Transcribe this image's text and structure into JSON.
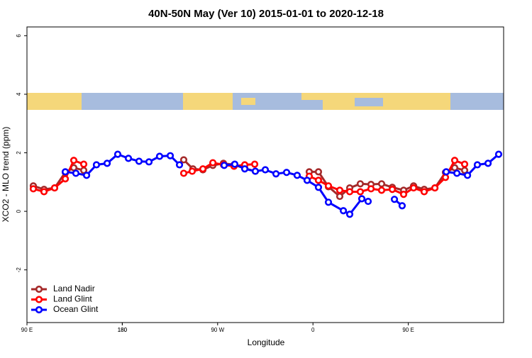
{
  "chart_data": {
    "type": "line",
    "title": "40N-50N May (Ver 10)   2015-01-01 to 2020-12-18",
    "x_label": "Longitude",
    "y_label": "XCO2 - MLO trend (ppm)",
    "xlim": [
      90,
      540
    ],
    "ylim": [
      -3.8,
      6.3
    ],
    "xticks": [
      {
        "value": 90,
        "label": "90 E"
      },
      180,
      {
        "value": 270,
        "label": "90 W"
      },
      {
        "value": 360,
        "label": "0"
      },
      {
        "value": 450,
        "label": "90 E"
      },
      180
    ],
    "yticks": [
      -2,
      0,
      2,
      4,
      6
    ],
    "legend": "bottom-left",
    "series": [
      {
        "name": "Land Nadir",
        "color": "#a52a2a",
        "x": [
          96.0,
          106.1,
          116.1,
          126.2,
          134.2,
          143.6,
          190,
          238.0,
          246.7,
          256.1,
          265.5,
          275.5,
          285.5,
          295.6,
          305.6,
          330,
          356.5,
          365.2,
          374.6,
          385.3,
          394.7,
          404.7,
          414.8,
          424.8,
          434.9,
          445.6,
          455.0,
          465.0,
          475.1,
          485.1,
          493.8,
          503.2
        ],
        "values": [
          0.87,
          0.75,
          0.8,
          1.33,
          1.49,
          1.4,
          null,
          1.76,
          1.45,
          1.42,
          1.57,
          1.64,
          1.59,
          1.47,
          1.37,
          null,
          1.35,
          1.35,
          0.84,
          0.51,
          0.8,
          0.94,
          0.92,
          0.94,
          0.82,
          0.72,
          0.87,
          0.75,
          0.8,
          1.33,
          1.49,
          1.4
        ]
      },
      {
        "name": "Land Glint",
        "color": "#ff0000",
        "x": [
          96.0,
          106.1,
          116.1,
          126.2,
          134.2,
          143.6,
          190,
          238.0,
          246.0,
          256.1,
          265.5,
          275.5,
          285.5,
          295.6,
          305.0,
          330,
          356.5,
          365.2,
          374.6,
          385.3,
          394.7,
          404.7,
          414.8,
          424.8,
          434.9,
          445.6,
          455.0,
          465.0,
          475.1,
          485.1,
          493.8,
          503.2
        ],
        "values": [
          0.77,
          0.67,
          0.8,
          1.11,
          1.74,
          1.61,
          null,
          1.3,
          1.37,
          1.45,
          1.66,
          1.59,
          1.54,
          1.59,
          1.61,
          null,
          1.2,
          1.06,
          0.87,
          0.72,
          0.67,
          0.67,
          0.77,
          0.72,
          0.75,
          0.58,
          0.8,
          0.67,
          0.8,
          1.16,
          1.74,
          1.61
        ]
      },
      {
        "name": "Ocean Glint",
        "color": "#0000ff",
        "x": [
          126.2,
          136.2,
          146.3,
          155.6,
          165.7,
          175.7,
          185.8,
          195.8,
          205.2,
          215.2,
          225.3,
          234.0,
          255,
          276.2,
          286.2,
          295.6,
          305.6,
          315.0,
          325.1,
          335.1,
          345.1,
          354.5,
          365.2,
          374.6,
          388.7,
          394.7,
          406.1,
          412.1,
          425,
          436.9,
          444.2,
          465,
          485.8,
          495.9,
          505.9,
          515.2,
          525.3,
          535.3
        ],
        "values": [
          1.35,
          1.3,
          1.23,
          1.59,
          1.64,
          1.95,
          1.81,
          1.71,
          1.69,
          1.88,
          1.9,
          1.59,
          null,
          1.57,
          1.61,
          1.45,
          1.37,
          1.42,
          1.28,
          1.33,
          1.23,
          1.06,
          0.82,
          0.31,
          0.02,
          -0.1,
          0.43,
          0.34,
          null,
          0.41,
          0.19,
          null,
          1.35,
          1.3,
          1.23,
          1.59,
          1.64,
          1.95
        ]
      }
    ]
  }
}
